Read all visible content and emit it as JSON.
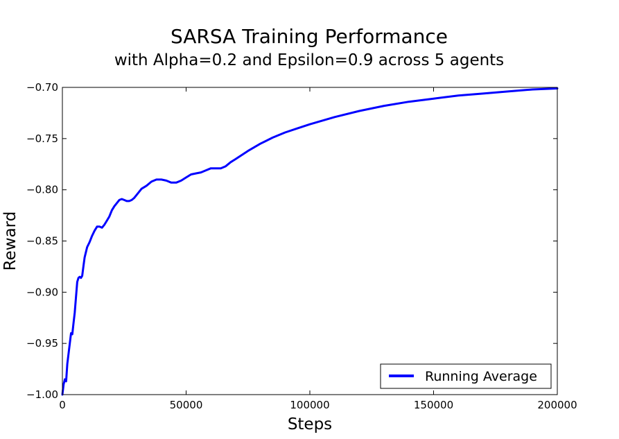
{
  "chart_data": {
    "type": "line",
    "title": "SARSA Training Performance",
    "subtitle": "with Alpha=0.2 and Epsilon=0.9 across 5 agents",
    "xlabel": "Steps",
    "ylabel": "Reward",
    "xlim": [
      0,
      200000
    ],
    "ylim": [
      -1.0,
      -0.7
    ],
    "xticks": [
      0,
      50000,
      100000,
      150000,
      200000
    ],
    "xtick_labels": [
      "0",
      "50000",
      "100000",
      "150000",
      "200000"
    ],
    "yticks": [
      -1.0,
      -0.95,
      -0.9,
      -0.85,
      -0.8,
      -0.75,
      -0.7
    ],
    "ytick_labels": [
      "−1.00",
      "−0.95",
      "−0.90",
      "−0.85",
      "−0.80",
      "−0.75",
      "−0.70"
    ],
    "grid": false,
    "legend": {
      "position": "lower-right"
    },
    "series": [
      {
        "name": "Running Average",
        "color": "#0000ff",
        "x": [
          0,
          500,
          1000,
          1500,
          2000,
          2500,
          3000,
          3500,
          4000,
          4500,
          5000,
          5500,
          6000,
          6500,
          7000,
          7500,
          8000,
          8500,
          9000,
          10000,
          11000,
          12000,
          13000,
          14000,
          15000,
          16000,
          17000,
          18000,
          19000,
          20000,
          21000,
          22000,
          23000,
          24000,
          25000,
          26000,
          27000,
          28000,
          29000,
          30000,
          32000,
          34000,
          36000,
          38000,
          40000,
          42000,
          44000,
          46000,
          48000,
          50000,
          52000,
          54000,
          56000,
          58000,
          60000,
          62000,
          64000,
          66000,
          68000,
          70000,
          75000,
          80000,
          85000,
          90000,
          95000,
          100000,
          110000,
          120000,
          130000,
          140000,
          150000,
          160000,
          170000,
          180000,
          190000,
          200000
        ],
        "y": [
          -1.0,
          -0.99,
          -0.985,
          -0.987,
          -0.97,
          -0.96,
          -0.95,
          -0.94,
          -0.941,
          -0.93,
          -0.92,
          -0.905,
          -0.89,
          -0.886,
          -0.885,
          -0.886,
          -0.884,
          -0.875,
          -0.866,
          -0.856,
          -0.851,
          -0.845,
          -0.84,
          -0.836,
          -0.836,
          -0.837,
          -0.834,
          -0.83,
          -0.826,
          -0.82,
          -0.816,
          -0.813,
          -0.81,
          -0.809,
          -0.81,
          -0.811,
          -0.811,
          -0.81,
          -0.808,
          -0.805,
          -0.799,
          -0.796,
          -0.792,
          -0.79,
          -0.79,
          -0.791,
          -0.793,
          -0.793,
          -0.791,
          -0.788,
          -0.785,
          -0.784,
          -0.783,
          -0.781,
          -0.779,
          -0.779,
          -0.779,
          -0.777,
          -0.773,
          -0.77,
          -0.762,
          -0.755,
          -0.749,
          -0.744,
          -0.74,
          -0.736,
          -0.729,
          -0.723,
          -0.718,
          -0.714,
          -0.711,
          -0.708,
          -0.706,
          -0.704,
          -0.702,
          -0.701
        ]
      }
    ]
  }
}
